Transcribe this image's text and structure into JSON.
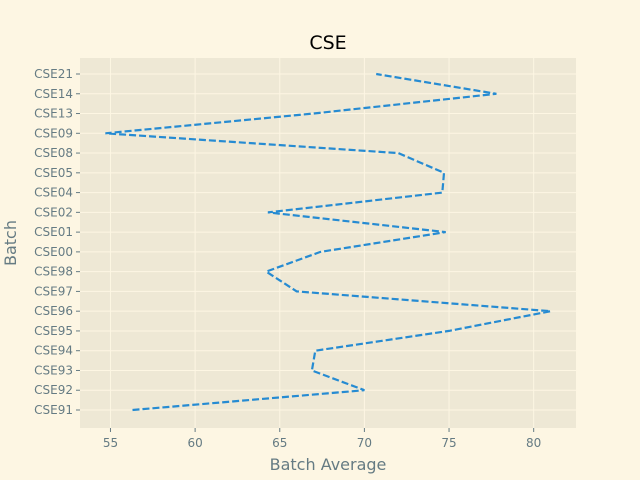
{
  "chart_data": {
    "type": "line",
    "title": "CSE",
    "xlabel": "Batch Average",
    "ylabel": "Batch",
    "xlim": [
      53.2,
      82.5
    ],
    "xticks": [
      55,
      60,
      65,
      70,
      75,
      80
    ],
    "categories": [
      "CSE91",
      "CSE92",
      "CSE93",
      "CSE94",
      "CSE95",
      "CSE96",
      "CSE97",
      "CSE98",
      "CSE00",
      "CSE01",
      "CSE02",
      "CSE04",
      "CSE05",
      "CSE08",
      "CSE09",
      "CSE13",
      "CSE14",
      "CSE21"
    ],
    "series": [
      {
        "values": [
          56.3,
          70.0,
          66.9,
          67.1,
          75.0,
          81.0,
          66.0,
          64.2,
          67.4,
          74.8,
          64.3,
          74.6,
          74.7,
          72.0,
          54.7,
          67.0,
          77.8,
          70.7
        ]
      }
    ],
    "line_style": "dashed",
    "line_color": "#268bd2",
    "plot_background": "#eee8d5",
    "grid": true,
    "legend": "none"
  }
}
